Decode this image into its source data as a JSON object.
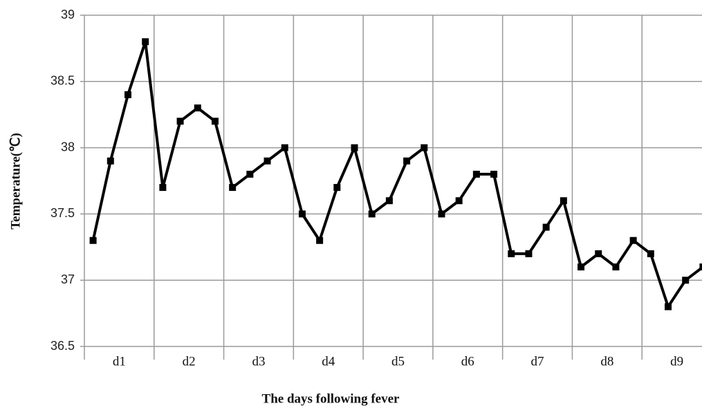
{
  "chart_data": {
    "type": "line",
    "xlabel": "The days following fever",
    "ylabel": "Temperature(℃)",
    "categories": [
      "d1",
      "d2",
      "d3",
      "d4",
      "d5",
      "d6",
      "d7",
      "d8",
      "d9"
    ],
    "values": [
      [
        37.3,
        37.9,
        38.4,
        38.8
      ],
      [
        37.7,
        38.2,
        38.3,
        38.2
      ],
      [
        37.7,
        37.8,
        37.9,
        38.0
      ],
      [
        37.5,
        37.3,
        37.7,
        38.0
      ],
      [
        37.5,
        37.6,
        37.9,
        38.0
      ],
      [
        37.5,
        37.6,
        37.8,
        37.8
      ],
      [
        37.2,
        37.2,
        37.4,
        37.6
      ],
      [
        37.1,
        37.2,
        37.1,
        37.3
      ],
      [
        37.2,
        36.8,
        37.0,
        37.1
      ]
    ],
    "color": "#000000",
    "ylim": [
      36.5,
      39
    ],
    "yticks": [
      36.5,
      37,
      37.5,
      38,
      38.5,
      39
    ],
    "grid": true
  }
}
